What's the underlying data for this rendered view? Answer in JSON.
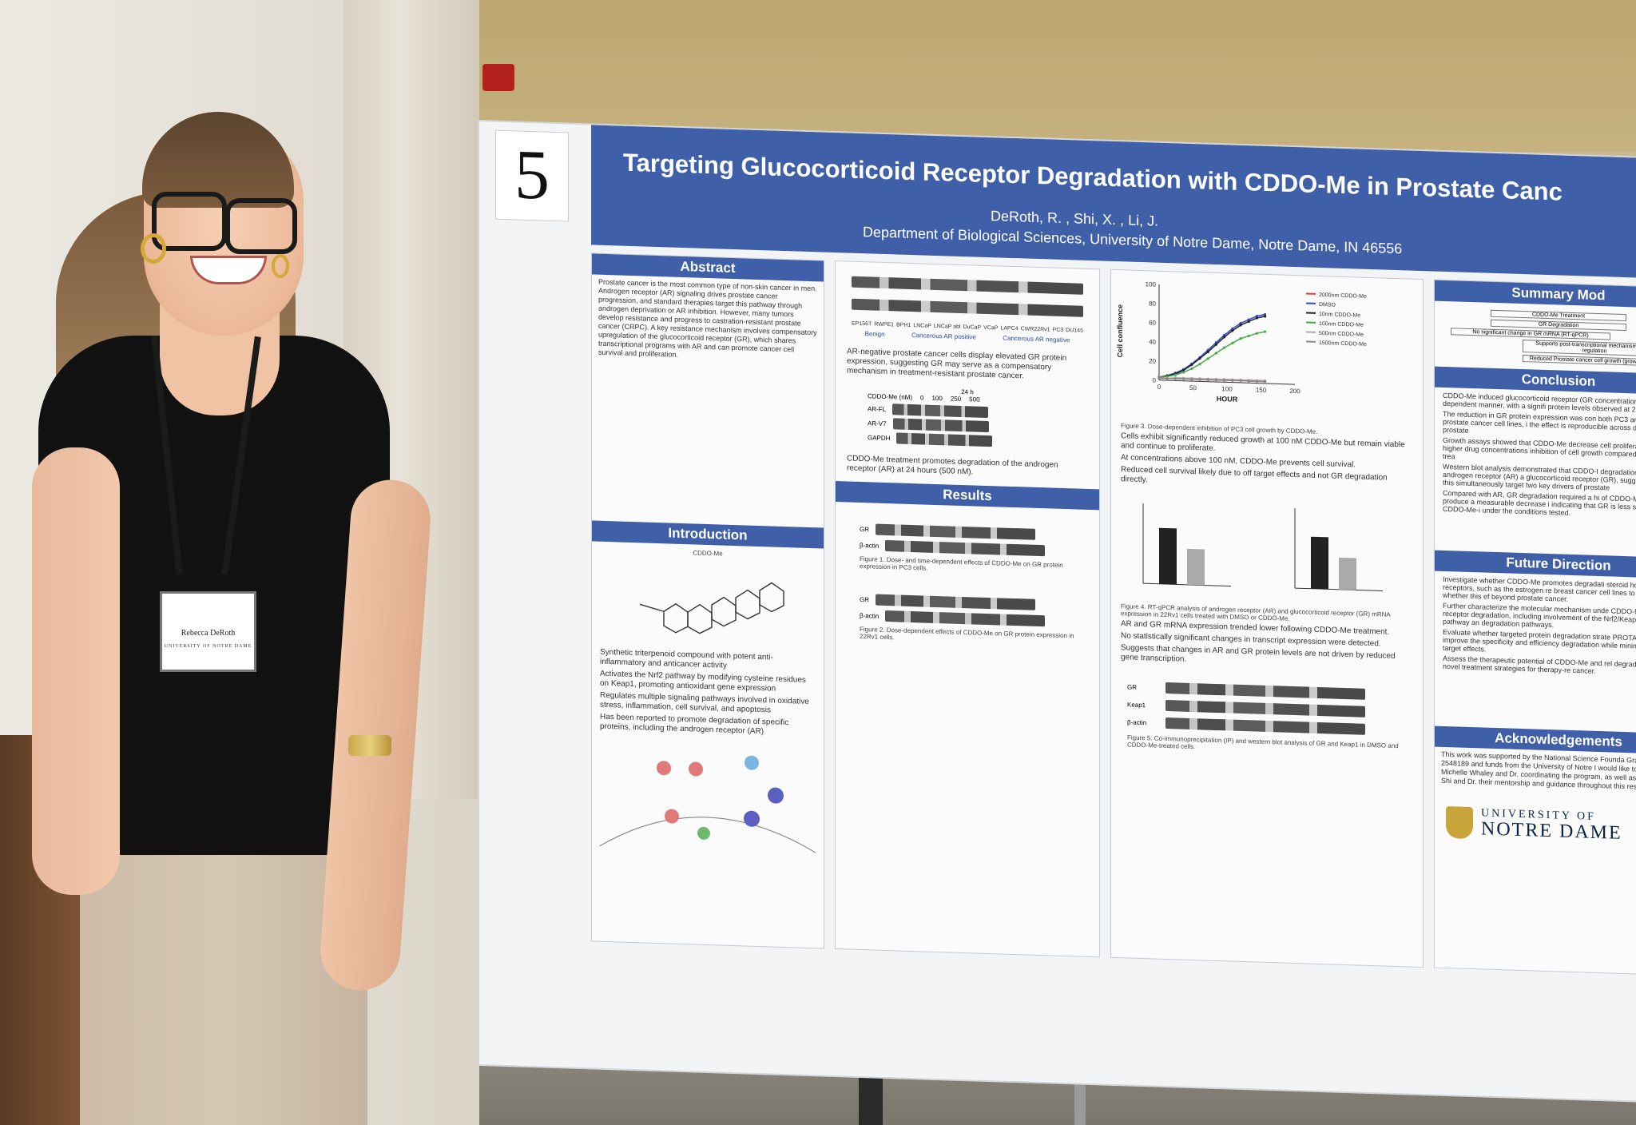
{
  "poster": {
    "number": "5",
    "title": "Targeting Glucocorticoid Receptor Degradation with CDDO-Me in Prostate Canc",
    "authors": "DeRoth, R. , Shi, X. , Li, J.",
    "affiliation": "Department of Biological Sciences, University of Notre Dame, Notre Dame, IN 46556",
    "sections": {
      "abstract_title": "Abstract",
      "introduction_title": "Introduction",
      "results_title": "Results",
      "summary_title": "Summary Mod",
      "conclusion_title": "Conclusion",
      "future_title": "Future Direction",
      "ack_title": "Acknowledgements"
    },
    "abstract_text": "Prostate cancer is the most common type of non-skin cancer in men. Androgen receptor (AR) signaling drives prostate cancer progression, and standard therapies target this pathway through androgen deprivation or AR inhibition. However, many tumors develop resistance and progress to castration-resistant prostate cancer (CRPC). A key resistance mechanism involves compensatory upregulation of the glucocorticoid receptor (GR), which shares transcriptional programs with AR and can promote cancer cell survival and proliferation.",
    "intro": {
      "compound": "CDDO-Me",
      "bullets": [
        "Synthetic triterpenoid compound with potent anti-inflammatory and anticancer activity",
        "Activates the Nrf2 pathway by modifying cysteine residues on Keap1, promoting antioxidant gene expression",
        "Regulates multiple signaling pathways involved in oxidative stress, inflammation, cell survival, and apoptosis",
        "Has been reported to promote degradation of specific proteins, including the androgen receptor (AR)"
      ]
    },
    "col2": {
      "blot_labels": [
        "EP156T",
        "RWPE1",
        "BPH1",
        "LNCaP",
        "LNCaP abl",
        "DuCaP",
        "VCaP",
        "LAPC4",
        "CWR22Rv1",
        "PC3",
        "DU145"
      ],
      "groups": [
        "Benign",
        "Cancerous AR positive",
        "Cancerous AR negative"
      ],
      "bullet_1": "AR-negative prostate cancer cells display elevated GR protein expression, suggesting GR may serve as a compensatory mechanism in treatment-resistant prostate cancer.",
      "blot2_header": "24 h",
      "blot2_rows": [
        "CDDO-Me (nM)",
        "AR-FL",
        "AR-V7",
        "GAPDH"
      ],
      "blot2_doses": [
        "0",
        "100",
        "250",
        "500"
      ],
      "bullet_2": "CDDO-Me treatment promotes degradation of the androgen receptor (AR) at 24 hours (500 nM).",
      "fig1_rows": [
        "GR",
        "β-actin"
      ],
      "fig1_caption": "Figure 1. Dose- and time-dependent effects of CDDO-Me on GR protein expression in PC3 cells.",
      "fig2_rows": [
        "GR",
        "β-actin"
      ],
      "fig2_caption": "Figure 2. Dose-dependent effects of CDDO-Me on GR protein expression in 22Rv1 cells."
    },
    "col3": {
      "fig3_caption": "Figure 3. Dose-dependent inhibition of PC3 cell growth by CDDO-Me.",
      "bullets_1": [
        "Cells exhibit significantly reduced growth at 100 nM CDDO-Me but remain viable and continue to proliferate.",
        "At concentrations above 100 nM, CDDO-Me prevents cell survival.",
        "Reduced cell survival likely due to off target effects and not GR degradation directly."
      ],
      "fig4_caption": "Figure 4. RT-qPCR analysis of androgen receptor (AR) and glucocorticoid receptor (GR) mRNA expression in 22Rv1 cells treated with DMSO or CDDO-Me.",
      "bullets_2": [
        "AR and GR mRNA expression trended lower following CDDO-Me treatment.",
        "No statistically significant changes in transcript expression were detected.",
        "Suggests that changes in AR and GR protein levels are not driven by reduced gene transcription."
      ],
      "fig5_rows": [
        "GR",
        "Keap1",
        "β-actin"
      ],
      "fig5_caption": "Figure 5. Co-immunoprecipitation (IP) and western blot analysis of GR and Keap1 in DMSO and CDDO-Me-treated cells."
    },
    "col4": {
      "summary_boxes": [
        "CDDO-Me Treatment",
        "GR Degradation",
        "No significant change in GR mRNA (RT-qPCR)",
        "Supports post-transcriptional mechanism of GR regulation",
        "Reduced Prostate cancer cell growth (growth assay)"
      ],
      "conclusion_bullets": [
        "CDDO-Me induced glucocorticoid receptor (GR concentration-dependent manner, with a signifi protein levels observed at 2000 nM.",
        "The reduction in GR protein expression was con both PC3 and 22Rv1 prostate cancer cell lines, i the effect is reproducible across distinct prostate",
        "Growth assays showed that CDDO-Me decrease cell proliferation, with higher drug concentrations inhibition of cell growth compared to vehicle-trea",
        "Western blot analysis demonstrated that CDDO-I degradation of both the androgen receptor (AR) a glucocorticoid receptor (GR), suggesting that this simultaneously target two key drivers of prostate",
        "Compared with AR, GR degradation required a hi of CDDO-Me to produce a measurable decrease i indicating that GR is less sensitive to CDDO-Me-i under the conditions tested."
      ],
      "future_bullets": [
        "Investigate whether CDDO-Me promotes degradati steroid hormone receptors, such as the estrogen re breast cancer cell lines to determine whether this ef beyond prostate cancer.",
        "Further characterize the molecular mechanism unde CDDO-Me-induced receptor degradation, including involvement of the Nrf2/Keap1 signaling pathway an degradation pathways.",
        "Evaluate whether targeted protein degradation strate PROTACs, can improve the specificity and efficiency degradation while minimizing off-target effects.",
        "Assess the therapeutic potential of CDDO-Me and rel degraders as novel treatment strategies for therapy-re cancer."
      ],
      "ack_text": "This work was supported by the National Science Founda Grant No. 2548189 and funds from the University of Notre I would like to thank Dr. Michelle Whaley and Dr. coordinating the program, as well as Xianglin Shi and Dr. their mentorship and guidance throughout this research ex",
      "university_line1": "UNIVERSITY OF",
      "university_line2": "NOTRE DAME"
    }
  },
  "badge": {
    "name": "Rebecca DeRoth",
    "institution": "UNIVERSITY OF NOTRE DAME"
  },
  "chart_data": {
    "type": "line",
    "title": "",
    "xlabel": "HOUR",
    "ylabel": "Cell confluence",
    "xlim": [
      0,
      200
    ],
    "ylim": [
      0,
      100
    ],
    "x_ticks": [
      0,
      50,
      100,
      150,
      200
    ],
    "y_ticks": [
      0,
      20,
      40,
      60,
      80,
      100
    ],
    "legend_position": "right",
    "x": [
      0,
      12,
      24,
      36,
      48,
      60,
      72,
      84,
      96,
      108,
      120,
      132,
      144,
      156
    ],
    "series": [
      {
        "name": "2000nm CDDO-Me",
        "color": "#e03a3a",
        "values": [
          2,
          2,
          2,
          2,
          2,
          2,
          2,
          2,
          2,
          2,
          2,
          2,
          2,
          2
        ]
      },
      {
        "name": "DMSO",
        "color": "#3344cc",
        "values": [
          3,
          5,
          8,
          12,
          18,
          25,
          33,
          41,
          49,
          56,
          62,
          66,
          70,
          72
        ]
      },
      {
        "name": "10nm CDDO-Me",
        "color": "#222222",
        "values": [
          3,
          5,
          7,
          11,
          17,
          24,
          31,
          39,
          47,
          54,
          60,
          64,
          68,
          70
        ]
      },
      {
        "name": "100nm CDDO-Me",
        "color": "#44aa44",
        "values": [
          3,
          4,
          6,
          9,
          13,
          18,
          24,
          30,
          36,
          41,
          46,
          49,
          52,
          54
        ]
      },
      {
        "name": "500nm CDDO-Me",
        "color": "#aaaaaa",
        "values": [
          2,
          2,
          3,
          3,
          3,
          3,
          3,
          3,
          3,
          3,
          3,
          3,
          3,
          3
        ]
      },
      {
        "name": "1500nm CDDO-Me",
        "color": "#888888",
        "values": [
          2,
          2,
          2,
          2,
          2,
          2,
          2,
          2,
          2,
          2,
          2,
          2,
          2,
          2
        ]
      }
    ]
  }
}
